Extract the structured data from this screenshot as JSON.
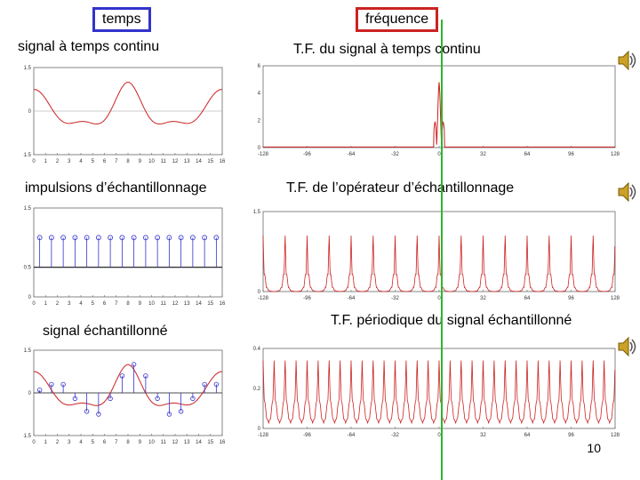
{
  "headers": {
    "time": "temps",
    "frequency": "fréquence",
    "time_color": "#3333cc",
    "freq_color": "#cc2222"
  },
  "labels": {
    "continuous_signal": "signal à temps continu",
    "impulses": "impulsions d’échantillonnage",
    "sampled_signal": "signal échantillonné",
    "ft_continuous": "T.F. du signal à temps continu",
    "ft_operator": "T.F. de l’opérateur d’échantillonnage",
    "ft_periodic": "T.F. périodique du signal échantillonné"
  },
  "page_number": "10",
  "icons": {
    "speaker": "speaker-icon"
  },
  "chart_data": [
    {
      "type": "line",
      "panel": "continuous-signal",
      "x_ticks": [
        "0",
        "1",
        "2",
        "3",
        "4",
        "5",
        "6",
        "7",
        "8",
        "9",
        "10",
        "11",
        "12",
        "13",
        "14",
        "15",
        "16"
      ],
      "y_ticks": [
        "-1.5",
        "0",
        "1.5"
      ],
      "xlim": [
        0,
        16
      ],
      "ylim": [
        -1.5,
        1.5
      ],
      "color": "#cc2222"
    },
    {
      "type": "bar",
      "panel": "impulses",
      "x_ticks": [
        "0",
        "1",
        "2",
        "3",
        "4",
        "5",
        "6",
        "7",
        "8",
        "9",
        "10",
        "11",
        "12",
        "13",
        "14",
        "15",
        "16"
      ],
      "y_ticks": [
        "0",
        "0.5",
        "1.5"
      ],
      "values": [
        1,
        1,
        1,
        1,
        1,
        1,
        1,
        1,
        1,
        1,
        1,
        1,
        1,
        1,
        1,
        1
      ],
      "xlim": [
        0,
        16
      ],
      "ylim": [
        0,
        1.5
      ],
      "color": "#3333cc"
    },
    {
      "type": "line",
      "panel": "sampled-signal",
      "x_ticks": [
        "0",
        "1",
        "2",
        "3",
        "4",
        "5",
        "6",
        "7",
        "8",
        "9",
        "10",
        "11",
        "12",
        "13",
        "14",
        "15",
        "16"
      ],
      "y_ticks": [
        "-1.5",
        "0",
        "1.5"
      ],
      "xlim": [
        0,
        16
      ],
      "ylim": [
        -1.5,
        1.5
      ],
      "color": "#cc2222",
      "samples": [
        0.1,
        0.3,
        0.3,
        -0.2,
        -0.65,
        -0.75,
        -0.2,
        0.6,
        1.0,
        0.6,
        -0.2,
        -0.75,
        -0.65,
        -0.2,
        0.3,
        0.3
      ]
    },
    {
      "type": "line",
      "panel": "ft-continuous",
      "x_ticks": [
        "-128",
        "-96",
        "-64",
        "-32",
        "0",
        "32",
        "64",
        "96",
        "128"
      ],
      "y_ticks": [
        "0",
        "2",
        "4",
        "6"
      ],
      "xlim": [
        -128,
        128
      ],
      "ylim": [
        0,
        6
      ],
      "color": "#cc2222"
    },
    {
      "type": "line",
      "panel": "ft-operator",
      "x_ticks": [
        "-128",
        "-96",
        "-64",
        "-32",
        "0",
        "32",
        "64",
        "96",
        "128"
      ],
      "y_ticks": [
        "0",
        "1.5"
      ],
      "xlim": [
        -128,
        128
      ],
      "ylim": [
        0,
        1.5
      ],
      "color": "#cc2222"
    },
    {
      "type": "line",
      "panel": "ft-periodic",
      "x_ticks": [
        "-128",
        "-96",
        "-64",
        "-32",
        "0",
        "32",
        "64",
        "96",
        "128"
      ],
      "y_ticks": [
        "0",
        "0.2",
        "0.4"
      ],
      "xlim": [
        -128,
        128
      ],
      "ylim": [
        0,
        0.4
      ],
      "color": "#cc2222"
    }
  ]
}
